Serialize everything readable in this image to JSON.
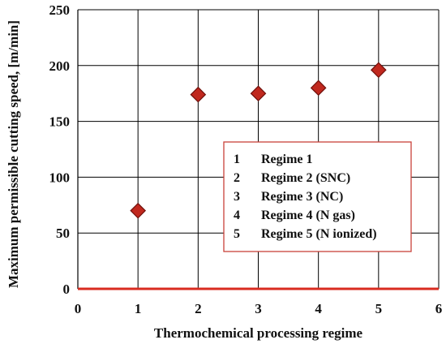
{
  "chart_data": {
    "type": "scatter",
    "title": "",
    "xlabel": "Thermochemical processing regime",
    "ylabel": "Maximum permissible cutting speed, [m/min]",
    "xlim": [
      0,
      6
    ],
    "ylim": [
      0,
      250
    ],
    "x_ticks": [
      0,
      1,
      2,
      3,
      4,
      5,
      6
    ],
    "y_ticks": [
      0,
      50,
      100,
      150,
      200,
      250
    ],
    "grid": true,
    "legend_placement": "center-right",
    "colors": {
      "marker_fill": "#c0281e",
      "marker_edge": "#6e0f0a",
      "gridline": "#000000",
      "zero_line": "#d92b20",
      "legend_border": "#c9413a"
    },
    "series": [
      {
        "x": [
          1,
          2,
          3,
          4,
          5
        ],
        "y": [
          70,
          174,
          175,
          180,
          196
        ]
      }
    ],
    "legend": [
      {
        "number": "1",
        "label": "Regime 1"
      },
      {
        "number": "2",
        "label": "Regime 2 (SNC)"
      },
      {
        "number": "3",
        "label": "Regime 3 (NC)"
      },
      {
        "number": "4",
        "label": "Regime 4 (N gas)"
      },
      {
        "number": "5",
        "label": "Regime 5 (N ionized)"
      }
    ]
  }
}
